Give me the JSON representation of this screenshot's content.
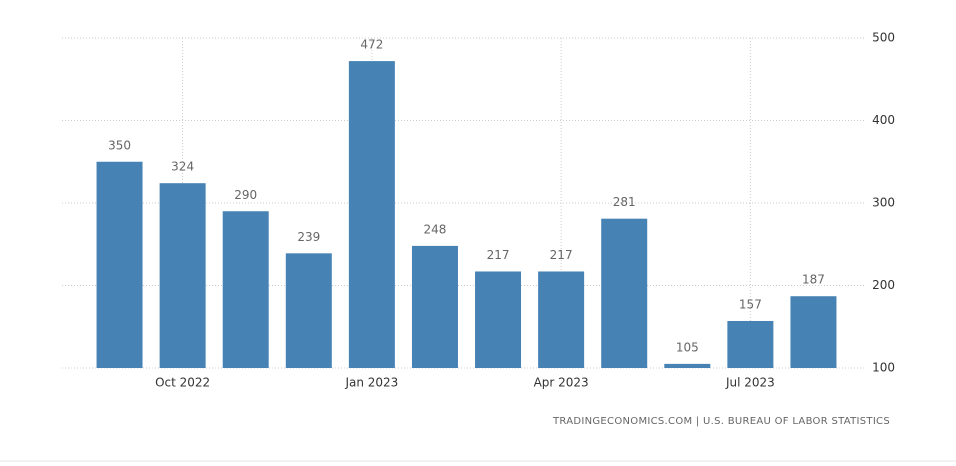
{
  "chart_data": {
    "type": "bar",
    "categories": [
      null,
      "Oct 2022",
      null,
      null,
      "Jan 2023",
      null,
      null,
      "Apr 2023",
      null,
      null,
      "Jul 2023",
      null
    ],
    "values": [
      350,
      324,
      290,
      239,
      472,
      248,
      217,
      217,
      281,
      105,
      157,
      187
    ],
    "color": "#4682b4",
    "ylim": [
      100,
      500
    ],
    "yticks": [
      100,
      200,
      300,
      400,
      500
    ],
    "grid": true,
    "source": "TRADINGECONOMICS.COM | U.S. BUREAU OF LABOR STATISTICS"
  }
}
